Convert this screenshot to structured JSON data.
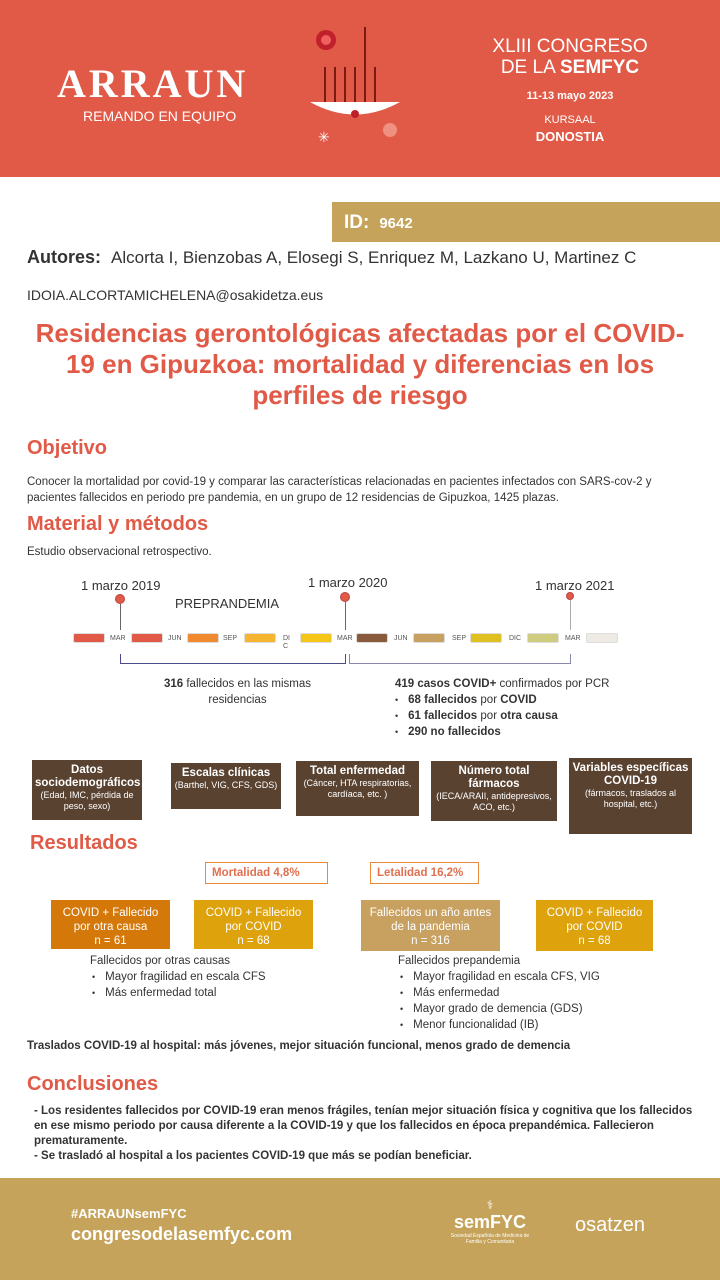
{
  "header": {
    "logo_title": "ARRAUN",
    "logo_subtitle": "REMANDO EN EQUIPO",
    "congress_line1": "XLIII CONGRESO",
    "congress_line2_prefix": "DE LA ",
    "congress_line2_bold": "SEMFYC",
    "dates": "11-13 mayo 2023",
    "venue": "KURSAAL",
    "city": "DONOSTIA",
    "bg_color": "#e05a47"
  },
  "id": {
    "label": "ID:",
    "value": "9642"
  },
  "authors": {
    "label": "Autores:",
    "names": "Alcorta I, Bienzobas A, Elosegi S, Enriquez M, Lazkano U, Martinez C"
  },
  "email": "IDOIA.ALCORTAMICHELENA@osakidetza.eus",
  "title": "Residencias gerontológicas afectadas por el COVID-19 en Gipuzkoa: mortalidad y diferencias en los perfiles de riesgo",
  "objetivo": {
    "heading": "Objetivo",
    "text": "Conocer la mortalidad por covid-19 y comparar las características relacionadas en pacientes infectados con SARS-cov-2 y pacientes fallecidos en periodo pre pandemia, en un grupo de 12 residencias de Gipuzkoa, 1425 plazas."
  },
  "metodos": {
    "heading": "Material y métodos",
    "text": "Estudio observacional retrospectivo."
  },
  "timeline": {
    "dates": [
      "1 marzo 2019",
      "1 marzo 2020",
      "1 marzo 2021"
    ],
    "period_label": "PREPRANDEMIA",
    "months": [
      "MAR",
      "JUN",
      "SEP",
      "DI C",
      "MAR",
      "JUN",
      "SEP",
      "DIC",
      "MAR"
    ],
    "segment_colors": [
      "#e05a47",
      "#e05a47",
      "#f08a30",
      "#f5b530",
      "#f5c518",
      "#8a5a3c",
      "#c8a060",
      "#e0c020",
      "#cfcc80",
      "#eeeae4"
    ],
    "left_bold": "316",
    "left_text": " fallecidos en las mismas residencias",
    "right_bold": "419 casos COVID+",
    "right_text": " confirmados por PCR",
    "bullets": [
      {
        "b1": "68 fallecidos",
        "t": " por ",
        "b2": "COVID"
      },
      {
        "b1": "61 fallecidos",
        "t": " por ",
        "b2": "otra causa"
      },
      {
        "b1": "290 no fallecidos",
        "t": "",
        "b2": ""
      }
    ]
  },
  "variables": [
    {
      "title": "Datos sociodemográficos",
      "detail": "(Edad, IMC, pérdida de peso, sexo)"
    },
    {
      "title": "Escalas clínicas",
      "detail": "(Barthel, VIG, CFS, GDS)"
    },
    {
      "title": "Total enfermedad",
      "detail": "(Cáncer, HTA respiratorias, cardíaca, etc. )"
    },
    {
      "title": "Número total fármacos",
      "detail": "(IECA/ARAII, antidepresivos, ACO, etc.)"
    },
    {
      "title": "Variables específicas COVID-19",
      "detail": "(fármacos, traslados al hospital, etc.)"
    }
  ],
  "resultados": {
    "heading": "Resultados",
    "mortalidad": "Mortalidad  4,8%",
    "letalidad": "Letalidad 16,2%",
    "boxes": [
      {
        "l1": "COVID + Fallecido",
        "l2": "por otra causa",
        "n": "n = 61",
        "color": "#d4780a"
      },
      {
        "l1": "COVID + Fallecido",
        "l2": "por COVID",
        "n": "n = 68",
        "color": "#dda20c"
      },
      {
        "l1": "Fallecidos un año antes",
        "l2": "de la pandemia",
        "n": "n = 316",
        "color": "#c8a060"
      },
      {
        "l1": "COVID + Fallecido",
        "l2": "por COVID",
        "n": "n = 68",
        "color": "#dda20c"
      }
    ],
    "left_heading": "Fallecidos por otras causas",
    "left_items": [
      "Mayor fragilidad en escala CFS",
      "Más enfermedad total"
    ],
    "right_heading": "Fallecidos prepandemia",
    "right_items": [
      "Mayor fragilidad en escala CFS, VIG",
      "Más enfermedad",
      "Mayor grado de demencia (GDS)",
      "Menor funcionalidad (IB)"
    ],
    "traslados": "Traslados COVID-19 al hospital: más jóvenes, mejor situación funcional, menos grado de demencia"
  },
  "conclusiones": {
    "heading": "Conclusiones",
    "items": [
      "- Los residentes fallecidos por COVID-19 eran menos frágiles, tenían mejor situación física y cognitiva que los fallecidos en ese mismo periodo por causa diferente a la COVID-19 y que los fallecidos en época prepandémica. Fallecieron prematuramente.",
      "- Se trasladó al hospital a los pacientes COVID-19 que más se podían beneficiar."
    ]
  },
  "footer": {
    "hashtag": "#ARRAUNsemFYC",
    "website": "congresodelasemfyc.com",
    "semfyc_logo": "semFYC",
    "semfyc_sub": "Sociedad Española de Medicina de Familia y Comunitaria",
    "osatzen_logo": "osatzen",
    "bg_color": "#c5a35a"
  }
}
